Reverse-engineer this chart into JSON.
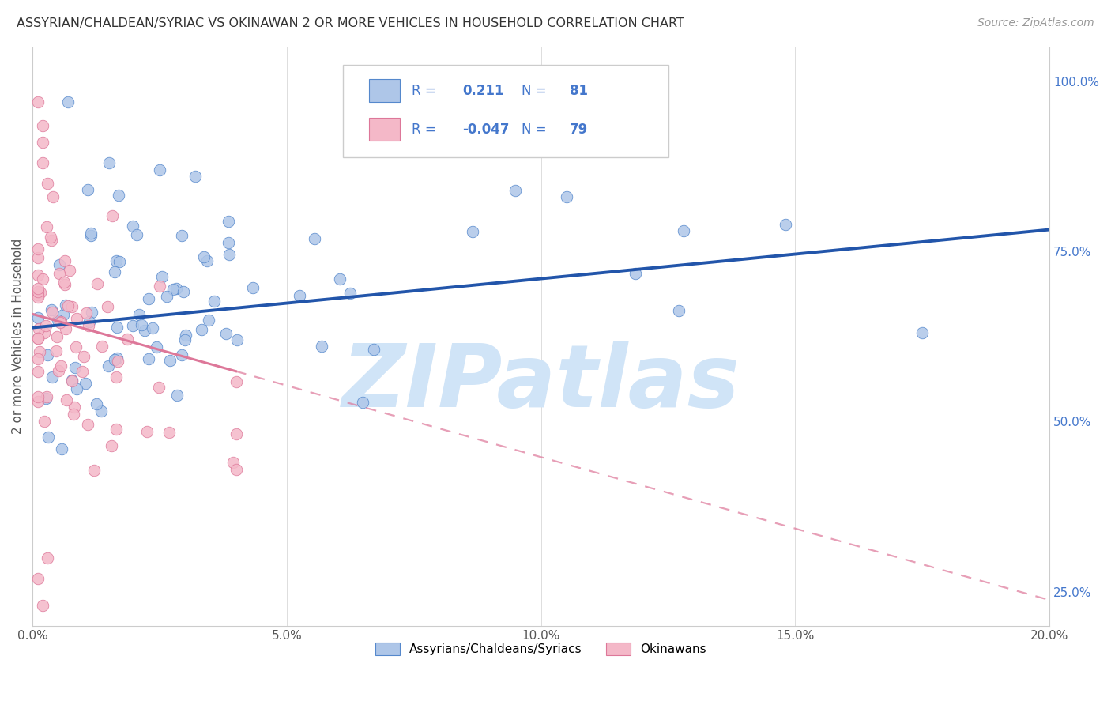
{
  "title": "ASSYRIAN/CHALDEAN/SYRIAC VS OKINAWAN 2 OR MORE VEHICLES IN HOUSEHOLD CORRELATION CHART",
  "source": "Source: ZipAtlas.com",
  "ylabel": "2 or more Vehicles in Household",
  "xmin": 0.0,
  "xmax": 0.2,
  "ymin": 0.2,
  "ymax": 1.05,
  "right_yticks": [
    0.25,
    0.5,
    0.75,
    1.0
  ],
  "right_yticklabels": [
    "25.0%",
    "50.0%",
    "75.0%",
    "100.0%"
  ],
  "xticks": [
    0.0,
    0.05,
    0.1,
    0.15,
    0.2
  ],
  "xticklabels": [
    "0.0%",
    "5.0%",
    "10.0%",
    "15.0%",
    "20.0%"
  ],
  "blue_R": 0.211,
  "blue_N": 81,
  "pink_R": -0.047,
  "pink_N": 79,
  "blue_color": "#aec6e8",
  "blue_edge_color": "#5588cc",
  "blue_line_color": "#2255aa",
  "pink_color": "#f4b8c8",
  "pink_edge_color": "#dd7799",
  "pink_line_color": "#dd7799",
  "watermark": "ZIPatlas",
  "watermark_color": "#d0e4f7",
  "legend_label_blue": "Assyrians/Chaldeans/Syriacs",
  "legend_label_pink": "Okinawans",
  "blue_line_intercept": 0.638,
  "blue_line_slope": 0.72,
  "pink_line_intercept": 0.658,
  "pink_line_slope": -2.1
}
